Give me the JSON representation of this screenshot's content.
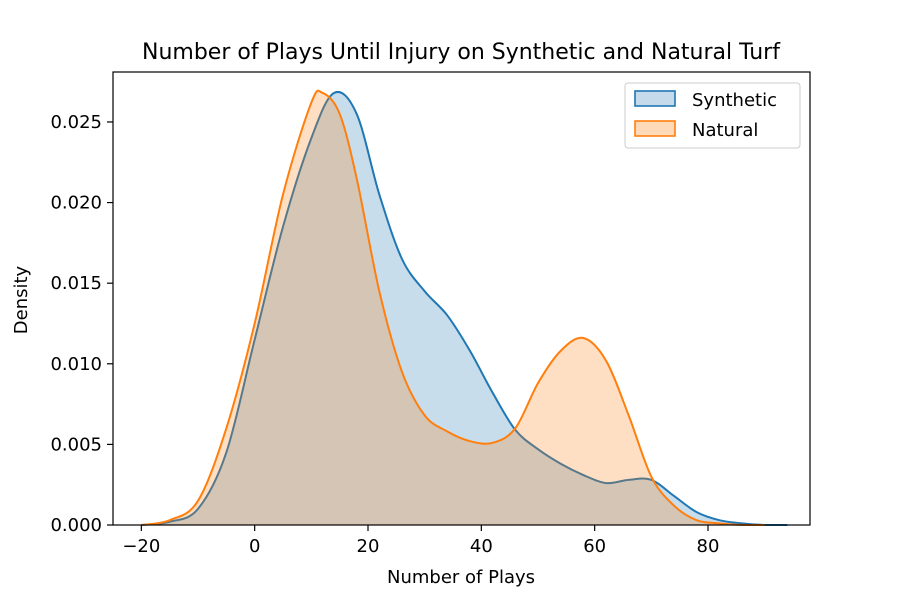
{
  "chart_data": {
    "type": "area",
    "title": "Number of Plays Until Injury on Synthetic and Natural Turf",
    "xlabel": "Number of Plays",
    "ylabel": "Density",
    "xlim": [
      -25,
      98
    ],
    "ylim": [
      0,
      0.0281
    ],
    "xticks": [
      -20,
      0,
      20,
      40,
      60,
      80
    ],
    "xtick_labels": [
      "−20",
      "0",
      "20",
      "40",
      "60",
      "80"
    ],
    "yticks": [
      0,
      0.005,
      0.01,
      0.015,
      0.02,
      0.025
    ],
    "ytick_labels": [
      "0.000",
      "0.005",
      "0.010",
      "0.015",
      "0.020",
      "0.025"
    ],
    "grid": false,
    "legend_position": "top-right",
    "series": [
      {
        "name": "Synthetic",
        "color": "#1f77b4",
        "fill_color": "#c5daeb",
        "x": [
          -20,
          -15,
          -10,
          -5,
          0,
          5,
          10,
          14,
          18,
          22,
          26,
          30,
          34,
          38,
          42,
          46,
          50,
          54,
          58,
          62,
          66,
          70,
          74,
          78,
          82,
          86,
          90,
          94
        ],
        "y": [
          0.0,
          0.0002,
          0.001,
          0.0045,
          0.0115,
          0.0185,
          0.024,
          0.0268,
          0.0255,
          0.0205,
          0.0165,
          0.0145,
          0.013,
          0.0108,
          0.0082,
          0.0059,
          0.0047,
          0.0038,
          0.0031,
          0.0026,
          0.0028,
          0.0028,
          0.0018,
          0.0008,
          0.0003,
          0.0001,
          0.0,
          0.0
        ]
      },
      {
        "name": "Natural",
        "color": "#ff7f0e",
        "fill_color": "#ffd9b8",
        "x": [
          -20,
          -15,
          -10,
          -5,
          0,
          5,
          10,
          12,
          15,
          18,
          22,
          26,
          30,
          34,
          38,
          42,
          46,
          50,
          54,
          58,
          62,
          66,
          70,
          74,
          78,
          82,
          86,
          90
        ],
        "y": [
          0.0,
          0.0003,
          0.0015,
          0.006,
          0.0125,
          0.0205,
          0.0262,
          0.0268,
          0.0255,
          0.0215,
          0.0145,
          0.0095,
          0.0068,
          0.0058,
          0.0052,
          0.0051,
          0.006,
          0.0088,
          0.0108,
          0.0116,
          0.0102,
          0.0068,
          0.003,
          0.0012,
          0.0003,
          0.0001,
          0.0,
          0.0
        ]
      }
    ]
  }
}
